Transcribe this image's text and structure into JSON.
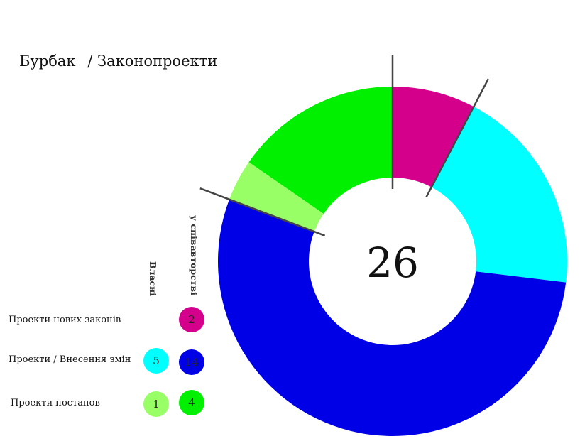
{
  "header": {
    "title_main": "Бурбак",
    "title_sep": "/",
    "title_sub": "Законопроекти"
  },
  "columns": {
    "own": "Власні",
    "coauthored": "у співавторстві"
  },
  "rows": [
    {
      "label": "Проекти нових законів",
      "own": null,
      "coauthored": "2"
    },
    {
      "label": "Проекти / Внесення змін",
      "own": "5",
      "coauthored": "14"
    },
    {
      "label": "Проекти постанов",
      "own": "1",
      "coauthored": "4"
    }
  ],
  "colors": {
    "new_laws_coauthored": "#d4008c",
    "amendments_own": "#00ffff",
    "amendments_coauthored": "#0000e6",
    "resolutions_own": "#99ff66",
    "resolutions_coauthored": "#00f000",
    "divider": "#444444"
  },
  "chart_data": {
    "type": "pie",
    "variant": "donut",
    "total": "26",
    "slices": [
      {
        "label": "Проекти нових законів — у співавторстві",
        "value": 2,
        "color": "#d4008c"
      },
      {
        "label": "Проекти / Внесення змін — власні",
        "value": 5,
        "color": "#00ffff"
      },
      {
        "label": "Проекти / Внесення змін — у співавторстві",
        "value": 14,
        "color": "#0000e6"
      },
      {
        "label": "Проекти постанов — власні",
        "value": 1,
        "color": "#99ff66"
      },
      {
        "label": "Проекти постанов — у співавторстві",
        "value": 4,
        "color": "#00f000"
      }
    ],
    "group_totals": [
      2,
      19,
      5
    ]
  }
}
